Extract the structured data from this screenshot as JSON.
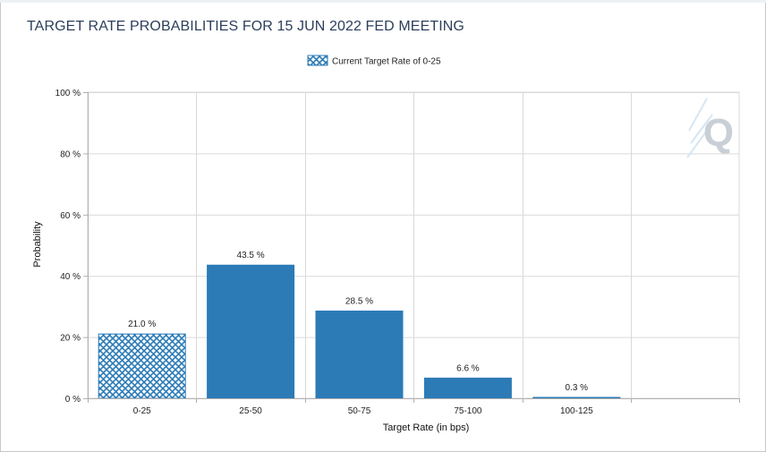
{
  "window": {
    "title": "TARGET RATE PROBABILITIES FOR 15 JUN 2022 FED MEETING"
  },
  "colors": {
    "bar": "#2c7bb6",
    "current_bar_fill": "#2c7bb6",
    "grid": "#d9d9d9",
    "axis": "#b0b0b0",
    "title": "#2b3f5c"
  },
  "watermark": {
    "glyph": "Q",
    "icon": "quikstrike-logo-icon"
  },
  "chart_data": {
    "type": "bar",
    "title": "TARGET RATE PROBABILITIES FOR 15 JUN 2022 FED MEETING",
    "xlabel": "Target Rate (in bps)",
    "ylabel": "Probability",
    "categories": [
      "0-25",
      "25-50",
      "50-75",
      "75-100",
      "100-125"
    ],
    "values": [
      21.0,
      43.5,
      28.5,
      6.6,
      0.3
    ],
    "data_labels": [
      "21.0 %",
      "43.5 %",
      "28.5 %",
      "6.6 %",
      "0.3 %"
    ],
    "highlight_index": 0,
    "legend": {
      "label": "Current Target Rate of 0-25",
      "placement": "top-center"
    },
    "ylim": [
      0,
      100
    ],
    "yticks": [
      0,
      20,
      40,
      60,
      80,
      100
    ],
    "ytick_labels": [
      "0 %",
      "20 %",
      "40 %",
      "60 %",
      "80 %",
      "100 %"
    ],
    "grid": true
  }
}
